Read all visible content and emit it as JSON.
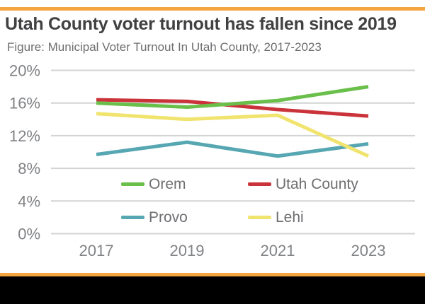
{
  "header": {
    "title": "Utah County voter turnout has fallen since 2019",
    "subtitle": "Figure: Municipal Voter Turnout In Utah County, 2017-2023"
  },
  "theme": {
    "accent_bar_color": "#f5a53f",
    "footer_bar_color": "#000000",
    "title_color": "#414042",
    "subtitle_color": "#6d6e71",
    "axis_label_color": "#808285",
    "gridline_color": "#d1d3d4",
    "legend_text_color": "#6d6e71"
  },
  "chart_data": {
    "type": "line",
    "title": "Utah County voter turnout has fallen since 2019",
    "subtitle": "Figure: Municipal Voter Turnout In Utah County, 2017-2023",
    "x": [
      2017,
      2019,
      2021,
      2023
    ],
    "x_tick_labels": [
      "2017",
      "2019",
      "2021",
      "2023"
    ],
    "y_tick_labels": [
      "0%",
      "4%",
      "8%",
      "12%",
      "16%",
      "20%"
    ],
    "ylim": [
      0,
      20
    ],
    "ytick_step": 4,
    "grid": true,
    "legend_position": "inside-bottom",
    "series": [
      {
        "name": "Orem",
        "color": "#6abf4b",
        "values": [
          16.0,
          15.5,
          16.3,
          18.0
        ]
      },
      {
        "name": "Utah County",
        "color": "#cb333b",
        "values": [
          16.4,
          16.2,
          15.2,
          14.4
        ]
      },
      {
        "name": "Provo",
        "color": "#57a7b3",
        "values": [
          9.7,
          11.2,
          9.5,
          11.0
        ]
      },
      {
        "name": "Lehi",
        "color": "#f0e46e",
        "values": [
          14.7,
          14.0,
          14.5,
          9.5
        ]
      }
    ]
  }
}
